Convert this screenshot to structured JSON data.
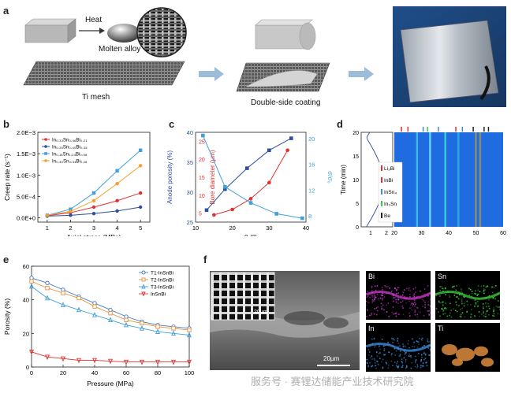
{
  "panels": {
    "a": {
      "letter": "a",
      "heat_label": "Heat",
      "molten_label": "Molten alloy",
      "mesh_label": "Ti mesh",
      "coating_label": "Double-side coating"
    },
    "b": {
      "letter": "b"
    },
    "c": {
      "letter": "c"
    },
    "d": {
      "letter": "d"
    },
    "e": {
      "letter": "e"
    },
    "f": {
      "letter": "f",
      "scale_main": "20µm",
      "scale_inset": "20µm",
      "maps": [
        "Bi",
        "Sn",
        "In",
        "Ti"
      ],
      "map_colors": [
        "#c838c8",
        "#3cc83c",
        "#3c8cdc",
        "#dc8c3c"
      ]
    }
  },
  "watermark": "服务号 · 赛锂达储能产业技术研究院",
  "chart_data": [
    {
      "id": "b",
      "type": "line",
      "xlabel": "Axial stress (MPa)",
      "ylabel": "Creep rate (s⁻¹)",
      "x": [
        1,
        2,
        3,
        4,
        5
      ],
      "xticks": [
        "1",
        "2",
        "3",
        "4",
        "5"
      ],
      "ylim": [
        -0.0001,
        0.002
      ],
      "yticks": [
        "0.0E+0",
        "5.0E−4",
        "1.0E−3",
        "1.5E−3",
        "2.0E−3"
      ],
      "legend_position": "top-left",
      "series": [
        {
          "name": "In₀.₃₃Sn₀.₄₆Bi₀.₂₁",
          "color": "#e03030",
          "marker": "circle",
          "values": [
            5e-05,
            0.00012,
            0.00025,
            0.0004,
            0.00058
          ]
        },
        {
          "name": "In₀.₂₅Sn₀.₄₀Bi₀.₃₅",
          "color": "#2c4fa0",
          "marker": "circle",
          "values": [
            4e-05,
            6e-05,
            0.0001,
            0.00016,
            0.00025
          ]
        },
        {
          "name": "In₀.₁₈Sn₀.₂₄Bi₀.₅₈",
          "color": "#3ea0dc",
          "marker": "square",
          "values": [
            6e-05,
            0.0002,
            0.00058,
            0.0011,
            0.00158
          ]
        },
        {
          "name": "In₀.₄₀Sn₀.₄₄Bi₀.₁₆",
          "color": "#f0a030",
          "marker": "circle",
          "values": [
            6e-05,
            0.00015,
            0.0004,
            0.0008,
            0.00122
          ]
        }
      ]
    },
    {
      "id": "c",
      "type": "line",
      "xlabel": "θ (°)",
      "ylabel_left": "Anode porosity (%)",
      "ylabel_right_outer": "Bore diameter (µm)",
      "ylabel_right": "σ/σ₀",
      "xlim": [
        10,
        40
      ],
      "xticks": [
        "10",
        "20",
        "30",
        "40"
      ],
      "ylim_left": [
        25,
        40
      ],
      "yticks_left": [
        "25",
        "30",
        "35",
        "40"
      ],
      "yticks_mid": [
        "5",
        "10",
        "15",
        "20",
        "25"
      ],
      "yticks_right": [
        "8",
        "12",
        "16",
        "20"
      ],
      "series": [
        {
          "name": "Anode porosity",
          "axis": "left",
          "color": "#2c4fa0",
          "marker": "square",
          "x": [
            13,
            18,
            24,
            30,
            36
          ],
          "values": [
            27,
            30.5,
            34,
            37,
            39
          ]
        },
        {
          "name": "Bore diameter",
          "axis": "mid",
          "color": "#e03030",
          "marker": "circle",
          "ylim": [
            2.5,
            27.5
          ],
          "x": [
            15,
            20,
            25,
            30,
            35
          ],
          "values": [
            4.5,
            6,
            9,
            13.5,
            22.5
          ]
        },
        {
          "name": "σ/σ₀",
          "axis": "right",
          "color": "#3ea0dc",
          "marker": "square",
          "ylim": [
            7,
            21
          ],
          "x": [
            12,
            18,
            25,
            32,
            39
          ],
          "values": [
            20.5,
            12.5,
            10,
            8.3,
            7.6
          ]
        }
      ]
    },
    {
      "id": "d",
      "type": "heatmap",
      "xlabel_left": "E (V)",
      "xlabel_right": "2θ (°)",
      "ylabel": "Time (min)",
      "yticks": [
        "0",
        "5",
        "10",
        "15",
        "20"
      ],
      "xticks_left": [
        "1",
        "2"
      ],
      "xticks_right": [
        "20",
        "30",
        "40",
        "50",
        "60"
      ],
      "legend": [
        {
          "name": "Li₃Bi",
          "color": "#e03030"
        },
        {
          "name": "InBi",
          "color": "#e03030"
        },
        {
          "name": "InSn₄",
          "color": "#3c8cdc"
        },
        {
          "name": "In₃Sn",
          "color": "#3cc83c"
        },
        {
          "name": "Be",
          "color": "#222222"
        }
      ]
    },
    {
      "id": "e",
      "type": "line",
      "xlabel": "Pressure (MPa)",
      "ylabel": "Porosity (%)",
      "xlim": [
        0,
        100
      ],
      "ylim": [
        0,
        60
      ],
      "xticks": [
        "0",
        "20",
        "40",
        "60",
        "80",
        "100"
      ],
      "yticks": [
        "0",
        "20",
        "40",
        "60"
      ],
      "legend_position": "top-right",
      "x": [
        0,
        10,
        20,
        30,
        40,
        50,
        60,
        70,
        80,
        90,
        100
      ],
      "series": [
        {
          "name": "T1-InSnBi",
          "color": "#3e7cc8",
          "marker": "circle",
          "values": [
            53,
            50,
            46,
            42,
            38,
            34,
            30,
            27,
            25,
            24,
            23
          ]
        },
        {
          "name": "T2-InSnBi",
          "color": "#e8903a",
          "marker": "square",
          "values": [
            51,
            47,
            44,
            41,
            36,
            32,
            28,
            26,
            24,
            23,
            22
          ]
        },
        {
          "name": "T3-InSnBi",
          "color": "#3ea0dc",
          "marker": "triangle",
          "values": [
            48,
            41,
            37,
            34,
            31,
            28,
            25,
            23,
            21,
            20,
            19
          ]
        },
        {
          "name": "InSnBi",
          "color": "#e03030",
          "marker": "down-triangle",
          "values": [
            9,
            6,
            5,
            4,
            4,
            3.5,
            3,
            3,
            3,
            3,
            3
          ]
        }
      ]
    }
  ]
}
